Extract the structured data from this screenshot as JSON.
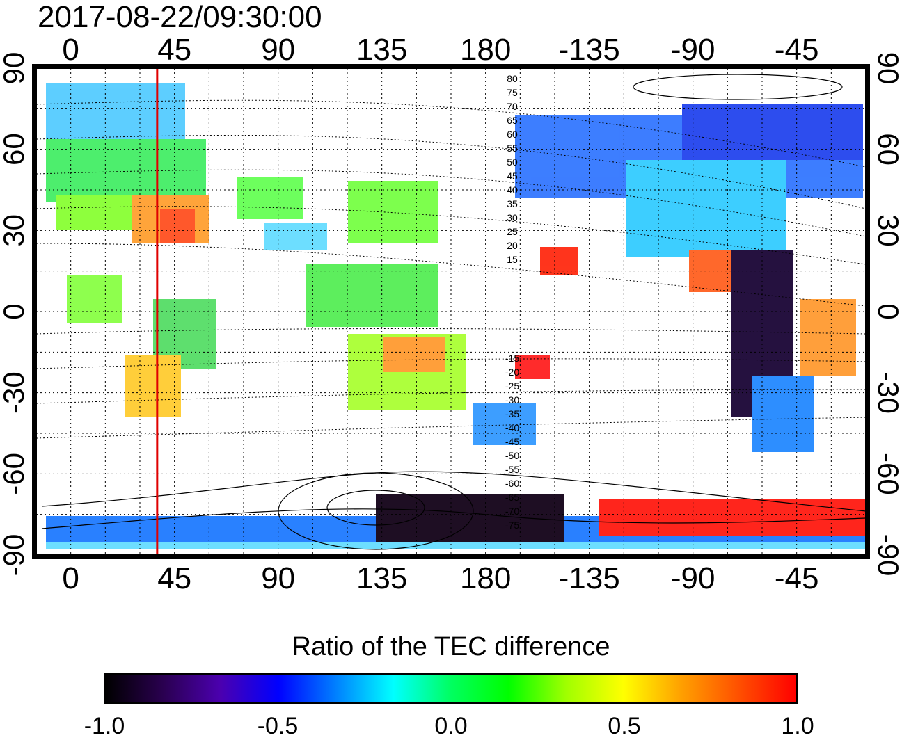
{
  "title": "2017-08-22/09:30:00",
  "map": {
    "lon_ticks": [
      "0",
      "45",
      "90",
      "135",
      "180",
      "-135",
      "-90",
      "-45"
    ],
    "lat_ticks": [
      "90",
      "60",
      "30",
      "0",
      "-30",
      "-60",
      "-90"
    ],
    "lon_values": [
      0,
      45,
      90,
      135,
      180,
      225,
      270,
      315
    ],
    "lat_values": [
      90,
      60,
      30,
      0,
      -30,
      -60,
      -90
    ],
    "terminator_longitude": 37.5,
    "terminator_color": "#e00000",
    "contour_labels": [
      "80",
      "75",
      "70",
      "65",
      "60",
      "55",
      "50",
      "45",
      "40",
      "35",
      "30",
      "25",
      "20",
      "15",
      "-15",
      "-20",
      "-25",
      "-30",
      "-35",
      "-40",
      "-45",
      "-50",
      "-55",
      "-60",
      "-65",
      "-70",
      "-75"
    ]
  },
  "colorbar": {
    "title": "Ratio of the TEC difference",
    "ticks": [
      "-1.0",
      "-0.5",
      "0.0",
      "0.5",
      "1.0"
    ],
    "tick_values": [
      -1.0,
      -0.5,
      0.0,
      0.5,
      1.0
    ],
    "range": [
      -1.0,
      1.0
    ],
    "colors": [
      "#000000",
      "#2a0050",
      "#4b00b0",
      "#0000ff",
      "#0080ff",
      "#00ffff",
      "#00ff60",
      "#00ff00",
      "#a0ff00",
      "#ffff00",
      "#ffa000",
      "#ff5000",
      "#ff0000"
    ]
  }
}
